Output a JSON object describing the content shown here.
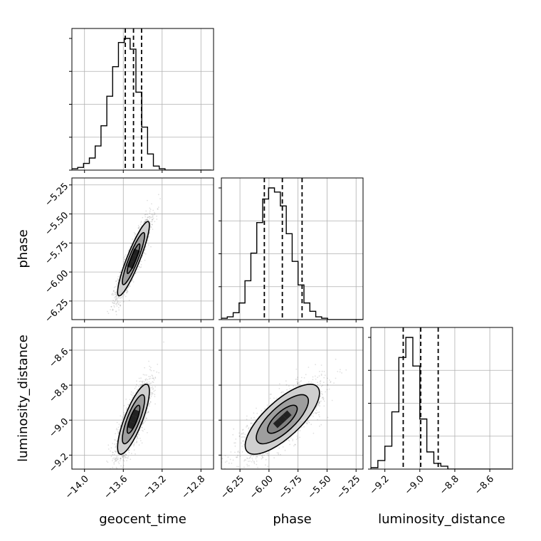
{
  "chart_data": {
    "type": "corner",
    "grid": true,
    "parameters": [
      {
        "name": "geocent_time",
        "xlabel": "geocent_time",
        "range": [
          -14.13,
          -12.67
        ],
        "ticks": [
          -14.0,
          -13.6,
          -13.2,
          -12.8
        ],
        "tick_labels": [
          "−14.0",
          "−13.6",
          "−13.2",
          "−12.8"
        ],
        "quantiles": [
          -13.58,
          -13.495,
          -13.412
        ],
        "hist_bin_width": 0.06,
        "hist_counts": [
          1,
          2,
          5,
          9,
          18,
          33,
          55,
          77,
          95,
          98,
          90,
          58,
          32,
          12,
          3,
          1,
          0,
          0,
          0,
          0,
          0,
          0,
          0,
          0
        ]
      },
      {
        "name": "phase",
        "xlabel": "phase",
        "ylabel": "phase",
        "range": [
          -6.41,
          -5.19
        ],
        "ticks": [
          -6.25,
          -6.0,
          -5.75,
          -5.5,
          -5.25
        ],
        "tick_labels": [
          "−6.25",
          "−6.00",
          "−5.75",
          "−5.50",
          "−5.25"
        ],
        "quantiles": [
          -6.04,
          -5.885,
          -5.715
        ],
        "hist_bin_width": 0.0508,
        "hist_counts": [
          1,
          2,
          5,
          12,
          28,
          48,
          70,
          87,
          95,
          92,
          82,
          62,
          42,
          25,
          12,
          6,
          2,
          1,
          0,
          0,
          0,
          0,
          0,
          0
        ]
      },
      {
        "name": "luminosity_distance",
        "xlabel": "luminosity_distance",
        "ylabel": "luminosity_distance",
        "range": [
          -9.28,
          -8.47
        ],
        "ticks": [
          -9.2,
          -9.0,
          -8.8,
          -8.6
        ],
        "tick_labels": [
          "−9.2",
          "−9.0",
          "−8.8",
          "−8.6"
        ],
        "quantiles": [
          -9.095,
          -8.995,
          -8.895
        ],
        "hist_bin_width": 0.04,
        "hist_counts": [
          1,
          6,
          16,
          40,
          78,
          92,
          72,
          35,
          12,
          4,
          2,
          0,
          0,
          0,
          0,
          0,
          0,
          0,
          0,
          0
        ]
      }
    ],
    "pairs": [
      {
        "x": "geocent_time",
        "y": "phase",
        "x_mean": -13.495,
        "y_mean": -5.885,
        "x_sd": 0.082,
        "y_sd": 0.16,
        "correlation": 0.9
      },
      {
        "x": "geocent_time",
        "y": "luminosity_distance",
        "x_mean": -13.495,
        "y_mean": -8.995,
        "x_sd": 0.082,
        "y_sd": 0.1,
        "correlation": 0.8
      },
      {
        "x": "phase",
        "y": "luminosity_distance",
        "x_mean": -5.885,
        "y_mean": -8.995,
        "x_sd": 0.16,
        "y_sd": 0.1,
        "correlation": 0.75
      }
    ],
    "colors": {
      "line": "#000000",
      "grid": "#b0b0b0",
      "fill_dark": "#222222",
      "fill_mid": "#777777",
      "fill_light": "#cfcfcf"
    }
  }
}
